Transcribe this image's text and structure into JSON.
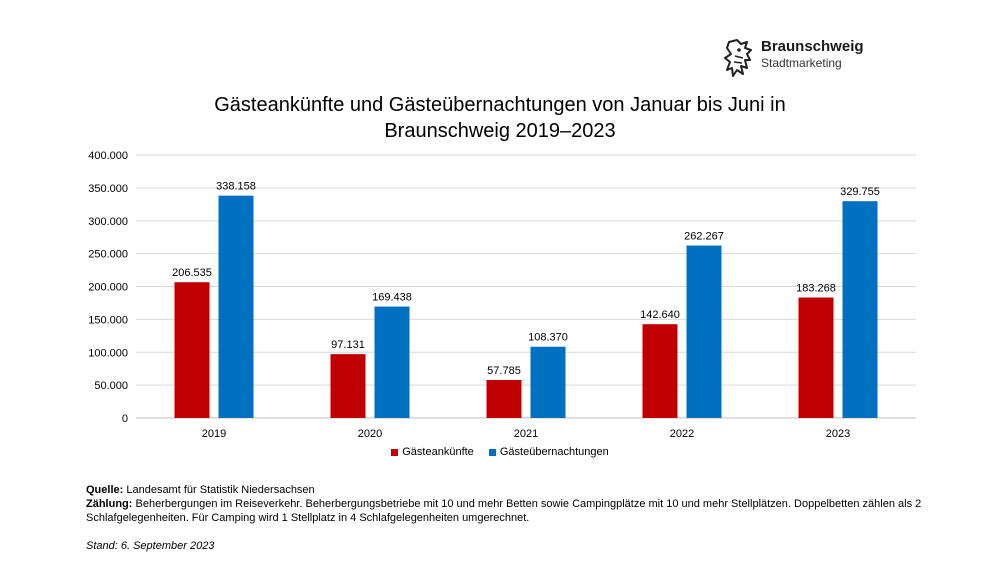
{
  "logo": {
    "title": "Braunschweig",
    "subtitle": "Stadtmarketing",
    "icon": "lion-icon"
  },
  "chart_data": {
    "type": "bar",
    "title_lines": [
      "Gästeankünfte und Gästeübernachtungen von Januar bis Juni in",
      "Braunschweig 2019–2023"
    ],
    "categories": [
      "2019",
      "2020",
      "2021",
      "2022",
      "2023"
    ],
    "series": [
      {
        "name": "Gästeankünfte",
        "color": "#C00000",
        "values": [
          206535,
          97131,
          57785,
          142640,
          183268
        ],
        "labels": [
          "206.535",
          "97.131",
          "57.785",
          "142.640",
          "183.268"
        ]
      },
      {
        "name": "Gästeübernachtungen",
        "color": "#0070C0",
        "values": [
          338158,
          169438,
          108370,
          262267,
          329755
        ],
        "labels": [
          "338.158",
          "169.438",
          "108.370",
          "262.267",
          "329.755"
        ]
      }
    ],
    "ylim": [
      0,
      400000
    ],
    "yticks": [
      0,
      50000,
      100000,
      150000,
      200000,
      250000,
      300000,
      350000,
      400000
    ],
    "ytick_labels": [
      "0",
      "50.000",
      "100.000",
      "150.000",
      "200.000",
      "250.000",
      "300.000",
      "350.000",
      "400.000"
    ],
    "grid": true,
    "legend_position": "bottom"
  },
  "notes": {
    "quelle_label": "Quelle:",
    "quelle_text": " Landesamt für Statistik Niedersachsen",
    "zaehlung_label": "Zählung:",
    "zaehlung_text": " Beherbergungen im Reiseverkehr. Beherbergungsbetriebe mit 10 und mehr Betten sowie Campingplätze mit 10 und mehr Stellplätzen. Doppelbetten zählen als 2 Schlafgelegenheiten. Für Camping wird 1 Stellplatz in 4 Schlafgelegenheiten umgerechnet.",
    "stand": "Stand: 6. September 2023"
  }
}
